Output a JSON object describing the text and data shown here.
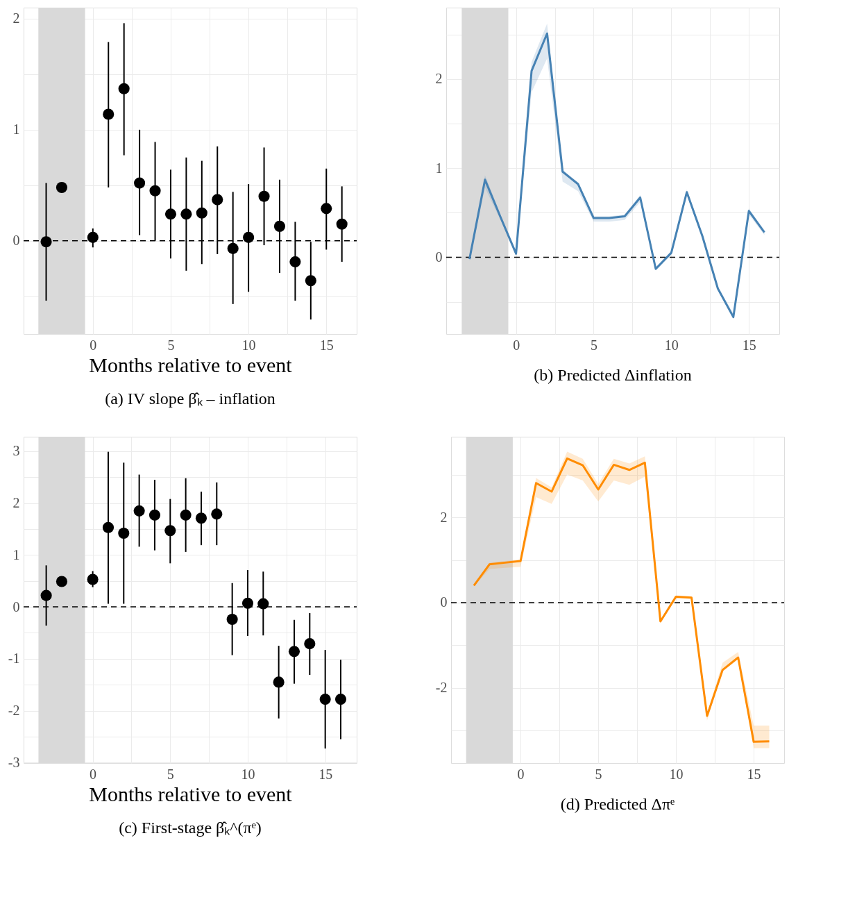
{
  "chart_data": [
    {
      "type": "scatter",
      "title": "(a) IV slope β̂ₖ – inflation",
      "xlabel": "Months relative to event",
      "marker": "circle",
      "color": "#000000",
      "x": [
        -3,
        -2,
        0,
        1,
        2,
        3,
        4,
        5,
        6,
        7,
        8,
        9,
        10,
        11,
        12,
        13,
        14,
        15,
        16
      ],
      "values": [
        -0.01,
        0.48,
        0.03,
        1.14,
        1.37,
        0.52,
        0.45,
        0.24,
        0.24,
        0.25,
        0.37,
        -0.07,
        0.03,
        0.4,
        0.13,
        -0.19,
        -0.36,
        0.29,
        0.15
      ],
      "errors": [
        [
          -0.54,
          0.52
        ],
        null,
        [
          -0.06,
          0.11
        ],
        [
          0.48,
          1.79
        ],
        [
          0.77,
          1.96
        ],
        [
          0.05,
          1.0
        ],
        [
          0.0,
          0.89
        ],
        [
          -0.16,
          0.64
        ],
        [
          -0.27,
          0.75
        ],
        [
          -0.21,
          0.72
        ],
        [
          -0.12,
          0.85
        ],
        [
          -0.57,
          0.44
        ],
        [
          -0.46,
          0.51
        ],
        [
          -0.04,
          0.84
        ],
        [
          -0.29,
          0.55
        ],
        [
          -0.54,
          0.17
        ],
        [
          -0.71,
          -0.01
        ],
        [
          -0.08,
          0.65
        ],
        [
          -0.19,
          0.49
        ]
      ],
      "xlim": [
        -4.45,
        16.95
      ],
      "ylim": [
        -0.84,
        2.1
      ],
      "xticks": [
        0,
        5,
        10,
        15,
        {
          "value": 2.5,
          "label": null
        },
        {
          "value": 7.5,
          "label": null
        },
        {
          "value": 12.5,
          "label": null
        }
      ],
      "yticks": [
        0,
        1,
        2,
        {
          "value": -0.5,
          "label": null
        },
        {
          "value": 0.5,
          "label": null
        },
        {
          "value": 1.5,
          "label": null
        }
      ],
      "grid": true,
      "bands": [
        {
          "axis": "x",
          "from": -3.5,
          "to": -0.5,
          "color": "#d9d9d9"
        }
      ],
      "ref_lines": [
        {
          "axis": "y",
          "value": 0,
          "color": "#000000",
          "line_style": "dashed"
        }
      ]
    },
    {
      "type": "line",
      "title": "(b) Predicted Δinflation",
      "x": [
        -3,
        -2,
        -1,
        0,
        1,
        2,
        3,
        4,
        5,
        6,
        7,
        8,
        9,
        10,
        11,
        12,
        13,
        14,
        15,
        16
      ],
      "series": [
        {
          "color": "#4682b4",
          "values": [
            -0.02,
            0.87,
            0.45,
            0.04,
            2.09,
            2.51,
            0.96,
            0.82,
            0.44,
            0.44,
            0.46,
            0.67,
            -0.13,
            0.05,
            0.73,
            0.24,
            -0.35,
            -0.67,
            0.52,
            0.28
          ],
          "lower": [
            -0.04,
            0.78,
            0.42,
            0.02,
            1.85,
            2.23,
            0.85,
            0.74,
            0.4,
            0.4,
            0.42,
            0.62,
            -0.15,
            0.03,
            0.7,
            0.21,
            -0.37,
            -0.69,
            0.48,
            0.25
          ],
          "upper": [
            0.0,
            0.92,
            0.48,
            0.06,
            2.19,
            2.62,
            0.98,
            0.84,
            0.46,
            0.46,
            0.48,
            0.7,
            -0.11,
            0.07,
            0.76,
            0.27,
            -0.33,
            -0.63,
            0.55,
            0.3
          ]
        }
      ],
      "xlim": [
        -4.5,
        16.96
      ],
      "ylim": [
        -0.86,
        2.8
      ],
      "xticks": [
        0,
        5,
        10,
        15,
        {
          "value": 2.5,
          "label": null
        },
        {
          "value": 7.5,
          "label": null
        },
        {
          "value": 12.5,
          "label": null
        }
      ],
      "yticks": [
        0,
        1,
        2,
        {
          "value": -0.5,
          "label": null
        },
        {
          "value": 0.5,
          "label": null
        },
        {
          "value": 1.5,
          "label": null
        },
        {
          "value": 2.5,
          "label": null
        }
      ],
      "grid": true,
      "bands": [
        {
          "axis": "x",
          "from": -3.5,
          "to": -0.5,
          "color": "#d9d9d9"
        }
      ],
      "ref_lines": [
        {
          "axis": "y",
          "value": 0,
          "color": "#000000",
          "line_style": "dashed"
        }
      ]
    },
    {
      "type": "scatter",
      "title": "(c) First-stage β̂ₖ^(πᵉ)",
      "xlabel": "Months relative to event",
      "marker": "circle",
      "color": "#000000",
      "x": [
        -3,
        -2,
        0,
        1,
        2,
        3,
        4,
        5,
        6,
        7,
        8,
        9,
        10,
        11,
        12,
        13,
        14,
        15,
        16
      ],
      "values": [
        0.22,
        0.49,
        0.53,
        1.53,
        1.42,
        1.85,
        1.77,
        1.47,
        1.77,
        1.71,
        1.79,
        -0.24,
        0.07,
        0.06,
        -1.45,
        -0.86,
        -0.71,
        -1.78,
        -1.78
      ],
      "errors": [
        [
          -0.36,
          0.8
        ],
        null,
        [
          0.38,
          0.69
        ],
        [
          0.06,
          2.99
        ],
        [
          0.06,
          2.78
        ],
        [
          1.16,
          2.55
        ],
        [
          1.09,
          2.45
        ],
        [
          0.84,
          2.08
        ],
        [
          1.06,
          2.48
        ],
        [
          1.19,
          2.22
        ],
        [
          1.19,
          2.4
        ],
        [
          -0.93,
          0.46
        ],
        [
          -0.56,
          0.71
        ],
        [
          -0.55,
          0.68
        ],
        [
          -2.15,
          -0.75
        ],
        [
          -1.48,
          -0.25
        ],
        [
          -1.31,
          -0.12
        ],
        [
          -2.73,
          -0.83
        ],
        [
          -2.55,
          -1.02
        ]
      ],
      "xlim": [
        -4.46,
        17.03
      ],
      "ylim": [
        -3.01,
        3.28
      ],
      "xticks": [
        0,
        5,
        10,
        15,
        {
          "value": 2.5,
          "label": null
        },
        {
          "value": 7.5,
          "label": null
        },
        {
          "value": 12.5,
          "label": null
        }
      ],
      "yticks": [
        -3,
        -2,
        -1,
        0,
        1,
        2,
        3,
        {
          "value": -2.5,
          "label": null
        },
        {
          "value": -1.5,
          "label": null
        },
        {
          "value": -0.5,
          "label": null
        },
        {
          "value": 0.5,
          "label": null
        },
        {
          "value": 1.5,
          "label": null
        },
        {
          "value": 2.5,
          "label": null
        }
      ],
      "grid": true,
      "bands": [
        {
          "axis": "x",
          "from": -3.5,
          "to": -0.5,
          "color": "#d9d9d9"
        }
      ],
      "ref_lines": [
        {
          "axis": "y",
          "value": 0,
          "color": "#000000",
          "line_style": "dashed"
        }
      ]
    },
    {
      "type": "line",
      "title": "(d) Predicted Δπᵉ",
      "x": [
        -3,
        -2,
        -1,
        0,
        1,
        2,
        3,
        4,
        5,
        6,
        7,
        8,
        9,
        10,
        11,
        12,
        13,
        14,
        15,
        16
      ],
      "series": [
        {
          "color": "#ff8c00",
          "values": [
            0.4,
            0.9,
            0.94,
            0.98,
            2.81,
            2.61,
            3.39,
            3.23,
            2.66,
            3.24,
            3.12,
            3.29,
            -0.44,
            0.14,
            0.12,
            -2.66,
            -1.58,
            -1.29,
            -3.27,
            -3.26
          ],
          "lower": [
            0.38,
            0.79,
            0.82,
            0.84,
            2.48,
            2.32,
            3.01,
            2.87,
            2.38,
            2.87,
            2.77,
            2.96,
            -0.47,
            0.11,
            0.09,
            -2.77,
            -1.62,
            -1.33,
            -3.42,
            -3.42
          ],
          "upper": [
            0.42,
            0.94,
            0.98,
            1.02,
            2.93,
            2.71,
            3.55,
            3.38,
            2.79,
            3.38,
            3.27,
            3.44,
            -0.41,
            0.17,
            0.15,
            -2.6,
            -1.41,
            -1.16,
            -2.89,
            -2.89
          ]
        }
      ],
      "xlim": [
        -4.47,
        16.96
      ],
      "ylim": [
        -3.77,
        3.9
      ],
      "xticks": [
        0,
        5,
        10,
        15,
        {
          "value": 2.5,
          "label": null
        },
        {
          "value": 7.5,
          "label": null
        },
        {
          "value": 12.5,
          "label": null
        }
      ],
      "yticks": [
        -2,
        0,
        2,
        {
          "value": -3,
          "label": null
        },
        {
          "value": -1,
          "label": null
        },
        {
          "value": 1,
          "label": null
        },
        {
          "value": 3,
          "label": null
        }
      ],
      "grid": true,
      "bands": [
        {
          "axis": "x",
          "from": -3.5,
          "to": -0.5,
          "color": "#d9d9d9"
        }
      ],
      "ref_lines": [
        {
          "axis": "y",
          "value": 0,
          "color": "#000000",
          "line_style": "dashed"
        }
      ]
    }
  ]
}
